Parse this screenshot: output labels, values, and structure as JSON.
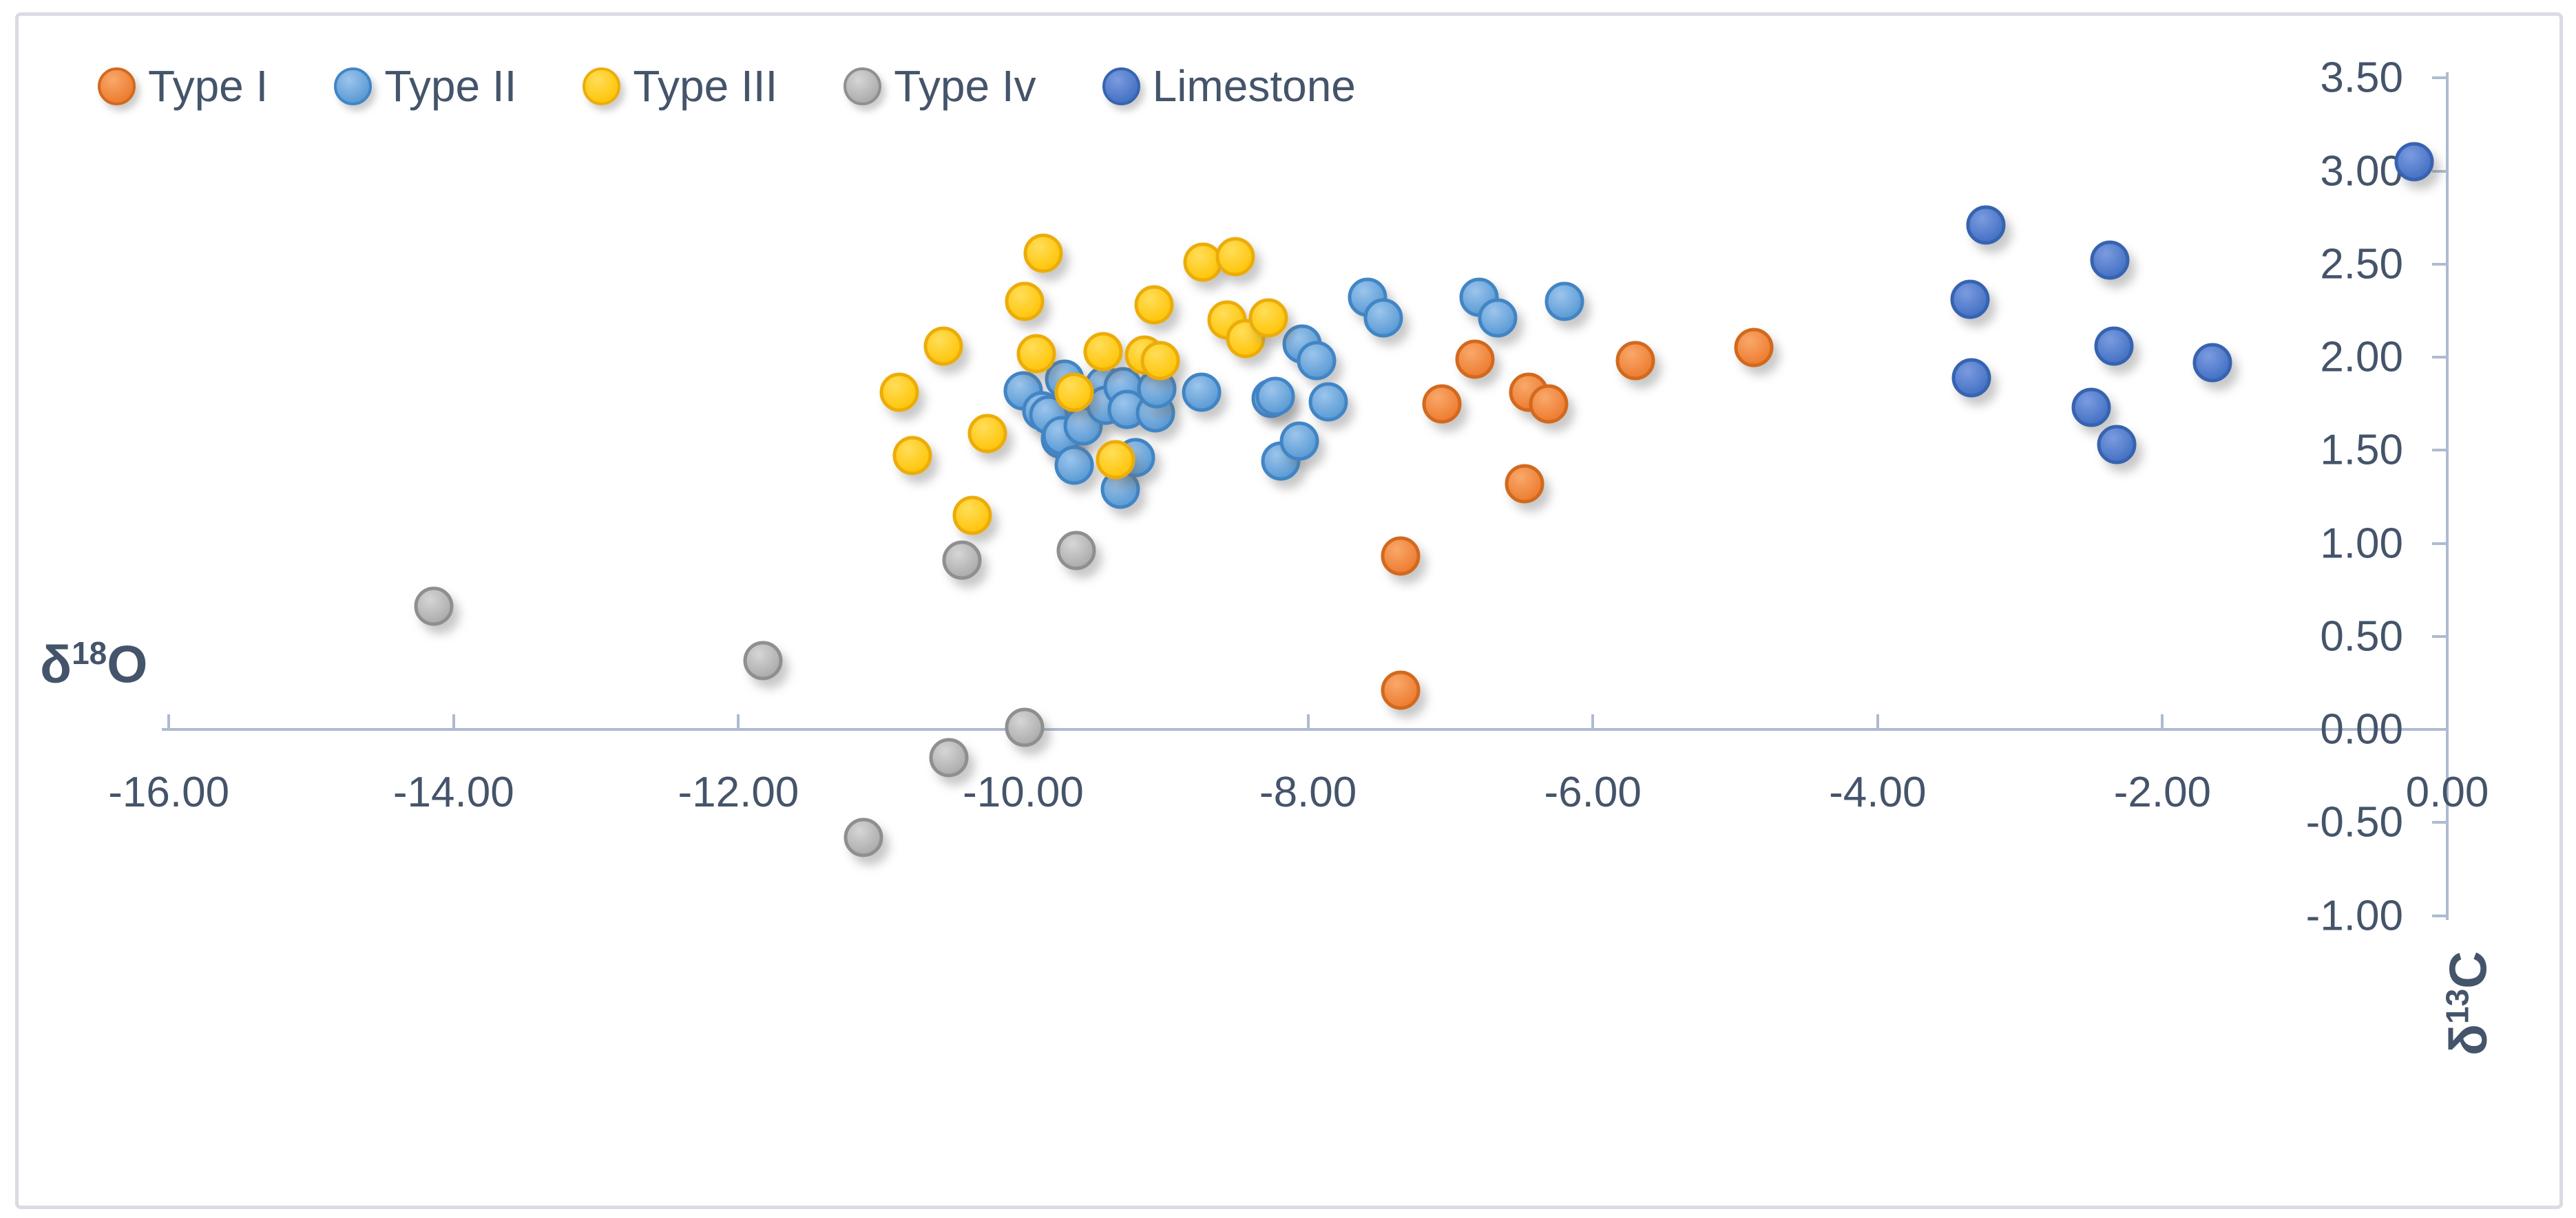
{
  "chart_data": {
    "type": "scatter",
    "title": "",
    "legend_position": "top-left",
    "grid": false,
    "x_axis": {
      "title": "δ18O",
      "title_symbol": "δ",
      "title_sup": "18",
      "title_suffix": "O",
      "min": -16,
      "max": 0,
      "tick_step": 2,
      "ticks": [
        {
          "v": -16,
          "label": "-16.00"
        },
        {
          "v": -14,
          "label": "-14.00"
        },
        {
          "v": -12,
          "label": "-12.00"
        },
        {
          "v": -10,
          "label": "-10.00"
        },
        {
          "v": -8,
          "label": "-8.00"
        },
        {
          "v": -6,
          "label": "-6.00"
        },
        {
          "v": -4,
          "label": "-4.00"
        },
        {
          "v": -2,
          "label": "-2.00"
        },
        {
          "v": 0,
          "label": "0.00"
        }
      ]
    },
    "y_axis": {
      "title": "δ13C",
      "title_symbol": "δ",
      "title_sup": "13",
      "title_suffix": "C",
      "min": -1.0,
      "max": 3.5,
      "tick_step": 0.5,
      "ticks": [
        {
          "v": 3.5,
          "label": "3.50"
        },
        {
          "v": 3.0,
          "label": "3.00"
        },
        {
          "v": 2.5,
          "label": "2.50"
        },
        {
          "v": 2.0,
          "label": "2.00"
        },
        {
          "v": 1.5,
          "label": "1.50"
        },
        {
          "v": 1.0,
          "label": "1.00"
        },
        {
          "v": 0.5,
          "label": "0.50"
        },
        {
          "v": 0.0,
          "label": "0.00"
        },
        {
          "v": -0.5,
          "label": "-0.50"
        },
        {
          "v": -1.0,
          "label": "-1.00"
        }
      ]
    },
    "colors": {
      "text": "#44546A",
      "axis_line": "#AEBBD0",
      "chart_border": "#D9DCE3"
    },
    "series": [
      {
        "name": "Type I",
        "fill": "#ED7D31",
        "fill_light": "#F9A86B",
        "border": "#D2691E",
        "points": [
          [
            -9.71,
            1.7
          ],
          [
            -7.35,
            0.93
          ],
          [
            -7.35,
            0.21
          ],
          [
            -7.06,
            1.75
          ],
          [
            -6.83,
            1.99
          ],
          [
            -6.48,
            1.32
          ],
          [
            -6.45,
            1.81
          ],
          [
            -6.31,
            1.75
          ],
          [
            -5.7,
            1.98
          ],
          [
            -4.87,
            2.05
          ]
        ]
      },
      {
        "name": "Type II",
        "fill": "#5B9BD5",
        "fill_light": "#9CC5EC",
        "border": "#4185C5",
        "points": [
          [
            -10.0,
            1.82
          ],
          [
            -9.87,
            1.71
          ],
          [
            -9.82,
            1.69
          ],
          [
            -9.74,
            1.56
          ],
          [
            -9.73,
            1.58
          ],
          [
            -9.71,
            1.88
          ],
          [
            -9.64,
            1.42
          ],
          [
            -9.58,
            1.63
          ],
          [
            -9.43,
            1.85
          ],
          [
            -9.42,
            1.74
          ],
          [
            -9.32,
            1.29
          ],
          [
            -9.3,
            1.84
          ],
          [
            -9.27,
            1.72
          ],
          [
            -9.21,
            1.46
          ],
          [
            -9.07,
            1.7
          ],
          [
            -9.06,
            1.83
          ],
          [
            -8.75,
            1.81
          ],
          [
            -8.26,
            1.78
          ],
          [
            -8.23,
            1.79
          ],
          [
            -8.19,
            1.44
          ],
          [
            -8.06,
            1.55
          ],
          [
            -8.04,
            2.07
          ],
          [
            -7.94,
            1.98
          ],
          [
            -7.86,
            1.76
          ],
          [
            -7.58,
            2.32
          ],
          [
            -7.47,
            2.21
          ],
          [
            -6.8,
            2.32
          ],
          [
            -6.67,
            2.21
          ],
          [
            -6.2,
            2.3
          ]
        ]
      },
      {
        "name": "Type III",
        "fill": "#FFC50A",
        "fill_light": "#FFDE59",
        "border": "#ECAC09",
        "points": [
          [
            -10.87,
            1.81
          ],
          [
            -10.78,
            1.47
          ],
          [
            -10.56,
            2.06
          ],
          [
            -10.36,
            1.15
          ],
          [
            -10.25,
            1.59
          ],
          [
            -9.99,
            2.3
          ],
          [
            -9.91,
            2.02
          ],
          [
            -9.86,
            2.56
          ],
          [
            -9.64,
            1.81
          ],
          [
            -9.44,
            2.03
          ],
          [
            -9.35,
            1.45
          ],
          [
            -9.15,
            2.01
          ],
          [
            -9.08,
            2.28
          ],
          [
            -9.04,
            1.98
          ],
          [
            -8.74,
            2.51
          ],
          [
            -8.57,
            2.2
          ],
          [
            -8.51,
            2.54
          ],
          [
            -8.44,
            2.1
          ],
          [
            -8.28,
            2.21
          ]
        ]
      },
      {
        "name": "Type Iv",
        "fill": "#ACACAC",
        "fill_light": "#D6D6D6",
        "border": "#8F8F8F",
        "points": [
          [
            -14.14,
            0.66
          ],
          [
            -11.83,
            0.37
          ],
          [
            -11.12,
            -0.58
          ],
          [
            -10.52,
            -0.15
          ],
          [
            -10.43,
            0.91
          ],
          [
            -9.99,
            0.01
          ],
          [
            -9.63,
            0.96
          ]
        ]
      },
      {
        "name": "Limestone",
        "fill": "#4472C4",
        "fill_light": "#7C9BE0",
        "border": "#3763B0",
        "points": [
          [
            -3.35,
            2.31
          ],
          [
            -3.34,
            1.89
          ],
          [
            -3.24,
            2.71
          ],
          [
            -2.5,
            1.73
          ],
          [
            -2.37,
            2.52
          ],
          [
            -2.34,
            2.06
          ],
          [
            -2.32,
            1.53
          ],
          [
            -1.65,
            1.97
          ],
          [
            -0.23,
            3.05
          ]
        ]
      }
    ]
  }
}
